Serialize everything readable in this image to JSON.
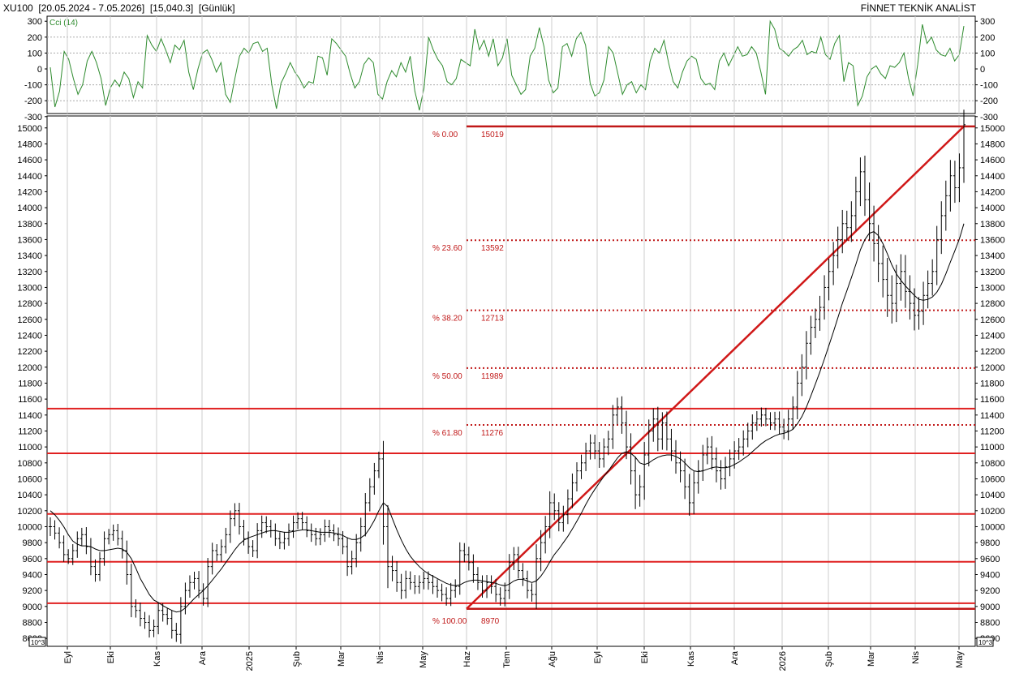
{
  "header": {
    "symbol": "XU100",
    "period": "[20.05.2024 - 7.05.2026]",
    "last_value": "[15,040.3]",
    "interval": "[Günlük]",
    "brand": "FİNNET TEKNİK ANALİST"
  },
  "colors": {
    "price": "#000000",
    "cci": "#2e8b2e",
    "resistance": "#e02020",
    "fib": "#c01818",
    "trend": "#d01818",
    "grid": "#cccccc"
  },
  "chart_data": [
    {
      "type": "line",
      "label": "Cci (14)",
      "ylim": [
        -300,
        300
      ],
      "yticks": [
        300,
        200,
        100,
        0,
        -100,
        -200,
        -300
      ],
      "reference_lines": [
        200,
        100,
        -100,
        -200
      ],
      "series": [
        {
          "values": [
            10,
            -240,
            -140,
            110,
            60,
            -60,
            -160,
            -100,
            50,
            110,
            40,
            -60,
            -230,
            -120,
            -70,
            -110,
            -20,
            -60,
            -180,
            -80,
            -120,
            210,
            150,
            110,
            190,
            120,
            40,
            150,
            120,
            180,
            -20,
            -130,
            0,
            100,
            120,
            60,
            -20,
            40,
            -160,
            -210,
            -60,
            80,
            130,
            100,
            160,
            170,
            110,
            130,
            -100,
            -250,
            -90,
            -30,
            40,
            -20,
            -60,
            -120,
            -80,
            -90,
            80,
            70,
            -40,
            190,
            160,
            120,
            80,
            -30,
            -120,
            -80,
            30,
            70,
            40,
            -160,
            -190,
            -80,
            -10,
            -50,
            40,
            -20,
            80,
            -140,
            -260,
            -120,
            200,
            120,
            60,
            20,
            -80,
            -100,
            -60,
            60,
            40,
            20,
            250,
            120,
            180,
            80,
            190,
            20,
            70,
            190,
            -40,
            -100,
            -160,
            -130,
            80,
            130,
            260,
            140,
            -70,
            -150,
            -120,
            140,
            160,
            80,
            190,
            230,
            150,
            -90,
            -170,
            -150,
            -70,
            140,
            100,
            -30,
            -160,
            -100,
            -80,
            -150,
            -100,
            -130,
            50,
            130,
            100,
            180,
            40,
            -80,
            -120,
            -20,
            50,
            80,
            60,
            -60,
            -100,
            -90,
            -130,
            50,
            100,
            20,
            80,
            140,
            80,
            90,
            140,
            100,
            -20,
            -160,
            300,
            250,
            130,
            110,
            80,
            120,
            140,
            180,
            90,
            110,
            100,
            200,
            90,
            60,
            160,
            210,
            -80,
            40,
            20,
            -230,
            -170,
            -50,
            0,
            20,
            -30,
            -60,
            20,
            10,
            40,
            100,
            -60,
            -170,
            30,
            280,
            160,
            200,
            120,
            90,
            80,
            130,
            50,
            90,
            270
          ]
        }
      ]
    },
    {
      "type": "bar",
      "style": "ohlc",
      "ylim": [
        8500,
        15150
      ],
      "yticks": [
        15000,
        14800,
        14600,
        14400,
        14200,
        14000,
        13800,
        13600,
        13400,
        13200,
        13000,
        12800,
        12600,
        12400,
        12200,
        12000,
        11800,
        11600,
        11400,
        11200,
        11000,
        10800,
        10600,
        10400,
        10200,
        10000,
        9800,
        9600,
        9400,
        9200,
        9000,
        8800,
        8600
      ],
      "x_tick_labels": [
        "Eyl",
        "Eki",
        "Kas",
        "Ara",
        "2025",
        "Şub",
        "Mar",
        "Nis",
        "May",
        "Haz",
        "Tem",
        "Ağu",
        "Eyl",
        "Eki",
        "Kas",
        "Ara",
        "2026",
        "Şub",
        "Mar",
        "Nis",
        "May"
      ],
      "axis_badge": "10^3",
      "close": [
        10000,
        9920,
        9800,
        9650,
        9600,
        9700,
        9850,
        9900,
        9750,
        9500,
        9400,
        9600,
        9850,
        9900,
        9950,
        9850,
        9700,
        9400,
        9000,
        8950,
        8850,
        8800,
        8700,
        8750,
        8950,
        8900,
        8850,
        8700,
        8650,
        9000,
        9200,
        9300,
        9350,
        9200,
        9100,
        9500,
        9700,
        9650,
        9750,
        9900,
        10100,
        10200,
        10000,
        9850,
        9750,
        9700,
        9950,
        10050,
        10000,
        9950,
        9850,
        9800,
        9850,
        9950,
        10050,
        10100,
        10050,
        9950,
        9900,
        9850,
        9900,
        10000,
        9950,
        9900,
        9850,
        9750,
        9500,
        9600,
        9800,
        10000,
        10300,
        10500,
        10700,
        10850,
        10000,
        9500,
        9450,
        9300,
        9200,
        9350,
        9300,
        9250,
        9300,
        9350,
        9300,
        9250,
        9200,
        9150,
        9100,
        9200,
        9250,
        9700,
        9650,
        9550,
        9400,
        9300,
        9200,
        9300,
        9250,
        9150,
        9100,
        9200,
        9550,
        9650,
        9450,
        9350,
        9200,
        9150,
        9600,
        9800,
        10000,
        10300,
        10200,
        10050,
        10150,
        10350,
        10550,
        10700,
        10800,
        10950,
        11050,
        10950,
        10850,
        11000,
        11100,
        11400,
        11500,
        11300,
        11000,
        10700,
        10400,
        10500,
        10900,
        11200,
        11350,
        11100,
        11300,
        11100,
        10950,
        10800,
        10700,
        10500,
        10300,
        10550,
        10700,
        10900,
        11000,
        10850,
        10700,
        10600,
        10750,
        10850,
        10950,
        11000,
        11100,
        11200,
        11300,
        11350,
        11400,
        11350,
        11300,
        11350,
        11250,
        11200,
        11350,
        11500,
        11800,
        12000,
        12300,
        12500,
        12600,
        12750,
        13000,
        13200,
        13400,
        13600,
        13800,
        13750,
        13900,
        14200,
        14450,
        14100,
        13800,
        13550,
        13300,
        13100,
        12900,
        12800,
        13050,
        13200,
        12950,
        12800,
        12650,
        12700,
        12900,
        13050,
        13200,
        13600,
        13900,
        14150,
        14400,
        14250,
        14500,
        15040
      ],
      "moving_average": [
        10200,
        10150,
        10080,
        10000,
        9900,
        9820,
        9780,
        9760,
        9760,
        9750,
        9720,
        9700,
        9700,
        9710,
        9720,
        9730,
        9720,
        9680,
        9600,
        9480,
        9350,
        9250,
        9150,
        9080,
        9050,
        9010,
        8980,
        8950,
        8930,
        8940,
        8980,
        9040,
        9100,
        9150,
        9200,
        9260,
        9330,
        9400,
        9470,
        9550,
        9630,
        9710,
        9780,
        9830,
        9860,
        9880,
        9900,
        9920,
        9940,
        9950,
        9950,
        9940,
        9930,
        9930,
        9940,
        9950,
        9960,
        9960,
        9950,
        9940,
        9930,
        9930,
        9930,
        9920,
        9910,
        9890,
        9860,
        9840,
        9840,
        9860,
        9900,
        9980,
        10080,
        10200,
        10300,
        10250,
        10100,
        9960,
        9830,
        9720,
        9630,
        9560,
        9500,
        9450,
        9410,
        9380,
        9350,
        9320,
        9290,
        9270,
        9260,
        9270,
        9300,
        9320,
        9330,
        9330,
        9320,
        9310,
        9300,
        9290,
        9270,
        9260,
        9280,
        9320,
        9340,
        9340,
        9320,
        9300,
        9320,
        9380,
        9460,
        9560,
        9650,
        9720,
        9800,
        9880,
        9970,
        10070,
        10170,
        10280,
        10380,
        10470,
        10550,
        10630,
        10700,
        10780,
        10860,
        10920,
        10940,
        10920,
        10870,
        10800,
        10780,
        10800,
        10840,
        10870,
        10890,
        10900,
        10900,
        10880,
        10850,
        10800,
        10740,
        10700,
        10690,
        10700,
        10720,
        10740,
        10750,
        10740,
        10740,
        10750,
        10780,
        10810,
        10850,
        10890,
        10940,
        10990,
        11040,
        11080,
        11110,
        11140,
        11160,
        11170,
        11190,
        11220,
        11290,
        11380,
        11500,
        11640,
        11790,
        11940,
        12100,
        12270,
        12440,
        12620,
        12800,
        12960,
        13120,
        13290,
        13470,
        13600,
        13680,
        13700,
        13650,
        13550,
        13420,
        13280,
        13170,
        13090,
        13020,
        12960,
        12900,
        12850,
        12840,
        12850,
        12880,
        12940,
        13040,
        13170,
        13320,
        13460,
        13610,
        13800
      ],
      "range": [
        260,
        180,
        160,
        200,
        150,
        180,
        200,
        190,
        210,
        240,
        200,
        180,
        200,
        160,
        170,
        190,
        220,
        280,
        300,
        200,
        220,
        180,
        200,
        190,
        220,
        200,
        180,
        230,
        210,
        260,
        220,
        200,
        190,
        210,
        200,
        240,
        220,
        180,
        200,
        190,
        230,
        210,
        220,
        190,
        200,
        180,
        210,
        200,
        180,
        190,
        200,
        180,
        190,
        200,
        200,
        180,
        190,
        180,
        200,
        190,
        180,
        200,
        190,
        180,
        200,
        210,
        260,
        220,
        240,
        250,
        270,
        240,
        220,
        200,
        500,
        600,
        300,
        260,
        240,
        220,
        200,
        210,
        200,
        190,
        200,
        210,
        200,
        190,
        200,
        210,
        200,
        230,
        210,
        220,
        230,
        210,
        200,
        210,
        200,
        210,
        200,
        220,
        240,
        210,
        220,
        210,
        220,
        200,
        400,
        350,
        300,
        320,
        260,
        240,
        250,
        260,
        260,
        240,
        230,
        230,
        240,
        230,
        250,
        240,
        230,
        280,
        260,
        300,
        340,
        380,
        400,
        330,
        360,
        320,
        300,
        340,
        300,
        320,
        280,
        300,
        320,
        340,
        360,
        320,
        300,
        280,
        260,
        300,
        320,
        300,
        280,
        260,
        270,
        250,
        240,
        230,
        240,
        220,
        210,
        200,
        190,
        200,
        210,
        230,
        260,
        300,
        340,
        360,
        340,
        320,
        300,
        320,
        340,
        360,
        380,
        360,
        380,
        360,
        400,
        420,
        400,
        450,
        480,
        500,
        520,
        500,
        600,
        560,
        520,
        480,
        460,
        450,
        420,
        400,
        380,
        360,
        340,
        380,
        400,
        420,
        440,
        420,
        400,
        420
      ],
      "horizontal_levels": [
        11480,
        10920,
        10160,
        9560,
        9040
      ],
      "fibonacci": {
        "start_label": "% 100.00",
        "start_value": "8970",
        "levels": [
          {
            "pct": "% 0.00",
            "value": 15019,
            "label": "15019"
          },
          {
            "pct": "% 23.60",
            "value": 13592,
            "label": "13592"
          },
          {
            "pct": "% 38.20",
            "value": 12713,
            "label": "12713"
          },
          {
            "pct": "% 50.00",
            "value": 11989,
            "label": "11989"
          },
          {
            "pct": "% 61.80",
            "value": 11276,
            "label": "11276"
          }
        ],
        "base_value": 8970,
        "trend_line": [
          8970,
          15019
        ]
      }
    }
  ]
}
